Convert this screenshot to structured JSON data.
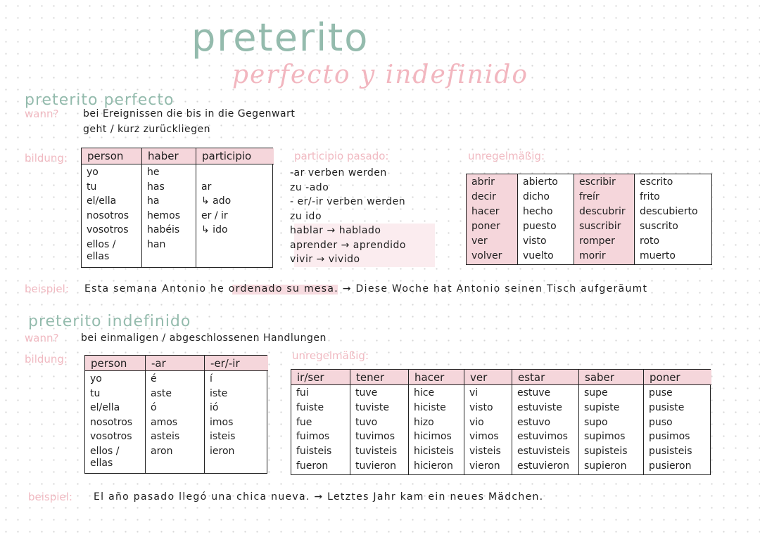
{
  "header": {
    "title": "preterito",
    "subtitle": "perfecto y indefinido"
  },
  "perfecto": {
    "heading": "preterito perfecto",
    "wann_label": "wann?",
    "wann_lines": [
      "bei Ereignissen die bis in die Gegenwart",
      "geht / kurz zurückliegen"
    ],
    "bildung_label": "bildung:",
    "table": {
      "columns": [
        {
          "header": "person",
          "cells": [
            "yo",
            "tu",
            "el/ella",
            "nosotros",
            "vosotros",
            "ellos / ellas"
          ]
        },
        {
          "header": "haber",
          "cells": [
            "he",
            "has",
            "ha",
            "hemos",
            "habéis",
            "han"
          ]
        },
        {
          "header": "participio",
          "cells": [
            "ar",
            "↳ ado",
            "er / ir",
            "↳ ido"
          ]
        }
      ]
    },
    "participio": {
      "heading": "participio pasado:",
      "lines": [
        "-ar verben werden",
        "zu -ado",
        "- er/-ir verben werden",
        "zu ido",
        "hablar → hablado",
        "aprender → aprendido",
        "vivir → vivido"
      ]
    },
    "irregular": {
      "heading": "unregelmäßig:",
      "columns": [
        {
          "cells": [
            "abrir",
            "decir",
            "hacer",
            "poner",
            "ver",
            "volver"
          ]
        },
        {
          "cells": [
            "abierto",
            "dicho",
            "hecho",
            "puesto",
            "visto",
            "vuelto"
          ]
        },
        {
          "cells": [
            "escribir",
            "freír",
            "descubrir",
            "suscribir",
            "romper",
            "morir"
          ]
        },
        {
          "cells": [
            "escrito",
            "frito",
            "descubierto",
            "suscrito",
            "roto",
            "muerto"
          ]
        }
      ]
    },
    "beispiel_label": "beispiel:",
    "beispiel": "Esta semana Antonio he ordenado su mesa. → Diese Woche hat Antonio seinen Tisch aufgeräumt"
  },
  "indefinido": {
    "heading": "preterito indefinido",
    "wann_label": "wann?",
    "wann_lines": [
      "bei einmaligen / abgeschlossenen Handlungen"
    ],
    "bildung_label": "bildung:",
    "table": {
      "columns": [
        {
          "header": "person",
          "cells": [
            "yo",
            "tu",
            "el/ella",
            "nosotros",
            "vosotros",
            "ellos / ellas"
          ]
        },
        {
          "header": "-ar",
          "cells": [
            "é",
            "aste",
            "ó",
            "amos",
            "asteis",
            "aron"
          ]
        },
        {
          "header": "-er/-ir",
          "cells": [
            "í",
            "iste",
            "ió",
            "imos",
            "isteis",
            "ieron"
          ]
        }
      ]
    },
    "irregular": {
      "heading": "unregelmäßig:",
      "columns": [
        {
          "header": "ir/ser",
          "cells": [
            "fui",
            "fuiste",
            "fue",
            "fuimos",
            "fuisteis",
            "fueron"
          ]
        },
        {
          "header": "tener",
          "cells": [
            "tuve",
            "tuviste",
            "tuvo",
            "tuvimos",
            "tuvisteis",
            "tuvieron"
          ]
        },
        {
          "header": "hacer",
          "cells": [
            "hice",
            "hiciste",
            "hizo",
            "hicimos",
            "hicisteis",
            "hicieron"
          ]
        },
        {
          "header": "ver",
          "cells": [
            "vi",
            "visto",
            "vio",
            "vimos",
            "visteis",
            "vieron"
          ]
        },
        {
          "header": "estar",
          "cells": [
            "estuve",
            "estuviste",
            "estuvo",
            "estuvimos",
            "estuvisteis",
            "estuvieron"
          ]
        },
        {
          "header": "saber",
          "cells": [
            "supe",
            "supiste",
            "supo",
            "supimos",
            "supisteis",
            "supieron"
          ]
        },
        {
          "header": "poner",
          "cells": [
            "puse",
            "pusiste",
            "puso",
            "pusimos",
            "pusisteis",
            "pusieron"
          ]
        }
      ]
    },
    "beispiel_label": "beispiel:",
    "beispiel": "El año pasado llegó una chica nueva. → Letztes Jahr kam ein neues Mädchen."
  }
}
